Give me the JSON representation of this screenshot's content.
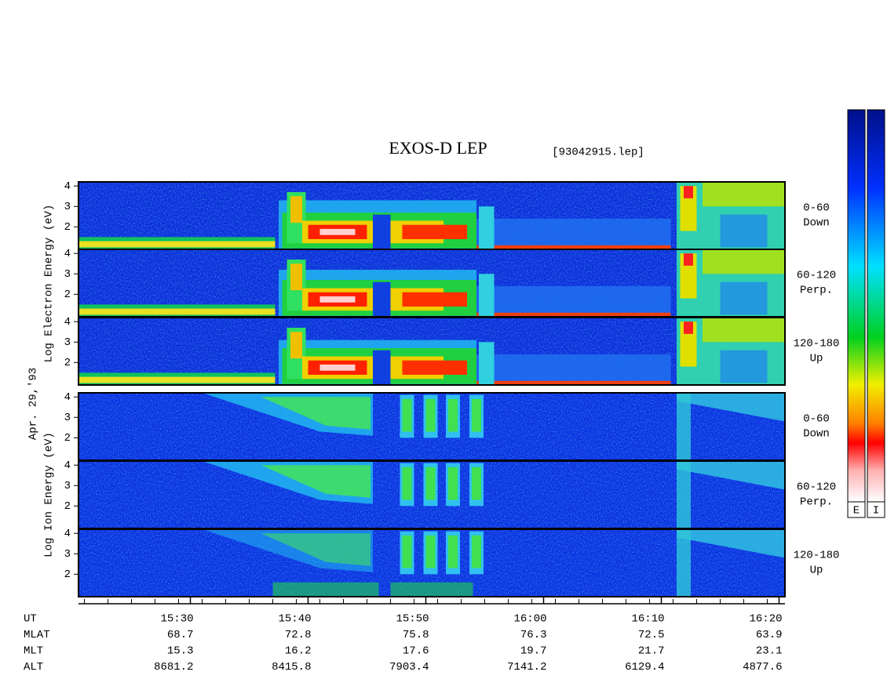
{
  "chart_data": {
    "type": "spectrogram",
    "title": "EXOS-D LEP",
    "file": "[93042915.lep]",
    "date": "Apr. 29,'93",
    "xlim": [
      920.5,
      980.5
    ],
    "xticks": [
      {
        "value": 930,
        "label": "15:30"
      },
      {
        "value": 940,
        "label": "15:40"
      },
      {
        "value": 950,
        "label": "15:50"
      },
      {
        "value": 960,
        "label": "16:00"
      },
      {
        "value": 970,
        "label": "16:10"
      },
      {
        "value": 980,
        "label": "16:20"
      }
    ],
    "ylim": [
      0.9,
      4.2
    ],
    "yticks": [
      2,
      3,
      4
    ],
    "groups": [
      {
        "ylabel": "Log Electron Energy (eV)",
        "species": "electron",
        "panels": [
          {
            "angle": "0-60",
            "direction": "Down"
          },
          {
            "angle": "60-120",
            "direction": "Perp."
          },
          {
            "angle": "120-180",
            "direction": "Up"
          }
        ]
      },
      {
        "ylabel": "Log Ion Energy (eV)",
        "species": "ion",
        "panels": [
          {
            "angle": "0-60",
            "direction": "Down"
          },
          {
            "angle": "60-120",
            "direction": "Perp."
          },
          {
            "angle": "120-180",
            "direction": "Up"
          }
        ]
      }
    ],
    "ephemeris": [
      {
        "label": "UT"
      },
      {
        "label": "MLAT",
        "values": [
          68.7,
          72.8,
          75.8,
          76.3,
          72.5,
          63.9
        ]
      },
      {
        "label": "MLT",
        "values": [
          15.3,
          16.2,
          17.6,
          19.7,
          21.7,
          23.1
        ]
      },
      {
        "label": "ALT",
        "values": [
          8681.2,
          8415.8,
          7903.4,
          7141.2,
          6129.4,
          4877.6
        ]
      }
    ],
    "colorbars": [
      "E",
      "I"
    ]
  }
}
